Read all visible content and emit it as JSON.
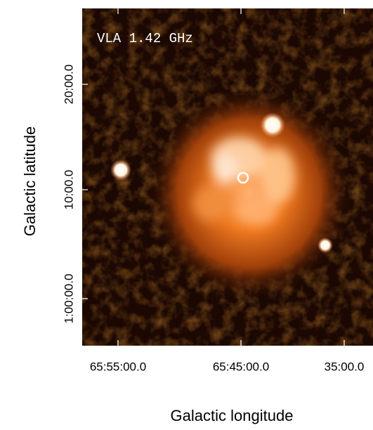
{
  "figure": {
    "annotation": "VLA 1.42 GHz",
    "x_axis": {
      "label": "Galactic longitude",
      "tick_labels": [
        "65:55:00.0",
        "65:45:00.0",
        "35:00.0"
      ]
    },
    "y_axis": {
      "label": "Galactic latitude",
      "tick_labels": [
        "20:00.0",
        "10:00.0",
        "1:00:00.0"
      ]
    }
  }
}
